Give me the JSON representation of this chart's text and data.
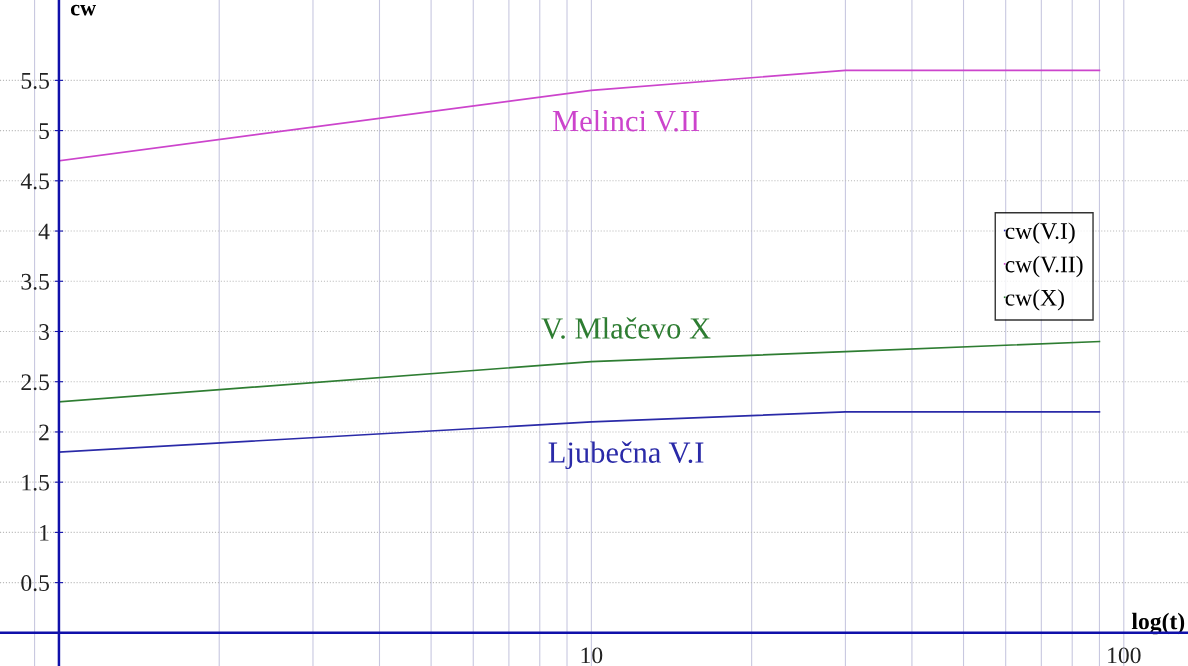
{
  "chart_data": {
    "type": "line",
    "xlabel": "log(t)",
    "ylabel": "cw",
    "x": [
      1,
      10,
      30,
      90
    ],
    "series": [
      {
        "name": "cw(V.I)",
        "color": "#2a2aa8",
        "values": [
          1.8,
          2.1,
          2.2,
          2.2
        ]
      },
      {
        "name": "cw(V.II)",
        "color": "#cc44cc",
        "values": [
          4.7,
          5.4,
          5.6,
          5.6
        ]
      },
      {
        "name": "cw(X)",
        "color": "#2e7d32",
        "values": [
          2.3,
          2.7,
          2.8,
          2.9
        ]
      }
    ],
    "annotations": [
      "Ljubečna V.I",
      "Melinci V.II",
      "V. Mlačevo X"
    ],
    "ref_lines": [
      {
        "axis": "y",
        "value": 0,
        "color": "#1010aa"
      }
    ],
    "log": "x",
    "xlim": [
      0.775,
      132
    ],
    "ylim": [
      -0.33,
      6.3
    ],
    "xticks": [
      {
        "value": 0.9,
        "label": null
      },
      {
        "value": 2,
        "label": null
      },
      {
        "value": 3,
        "label": null
      },
      {
        "value": 4,
        "label": null
      },
      {
        "value": 5,
        "label": null
      },
      {
        "value": 6,
        "label": null
      },
      {
        "value": 7,
        "label": null
      },
      {
        "value": 8,
        "label": null
      },
      {
        "value": 9,
        "label": null
      },
      10,
      {
        "value": 20,
        "label": null
      },
      {
        "value": 30,
        "label": null
      },
      {
        "value": 40,
        "label": null
      },
      {
        "value": 50,
        "label": null
      },
      {
        "value": 60,
        "label": null
      },
      {
        "value": 70,
        "label": null
      },
      {
        "value": 80,
        "label": null
      },
      {
        "value": 90,
        "label": null
      },
      100
    ],
    "yticks": [
      0.5,
      1,
      1.5,
      2,
      2.5,
      3,
      3.5,
      4,
      4.5,
      5,
      5.5
    ],
    "grid": true,
    "legend": "right",
    "marker": "none",
    "line_style": "solid"
  }
}
